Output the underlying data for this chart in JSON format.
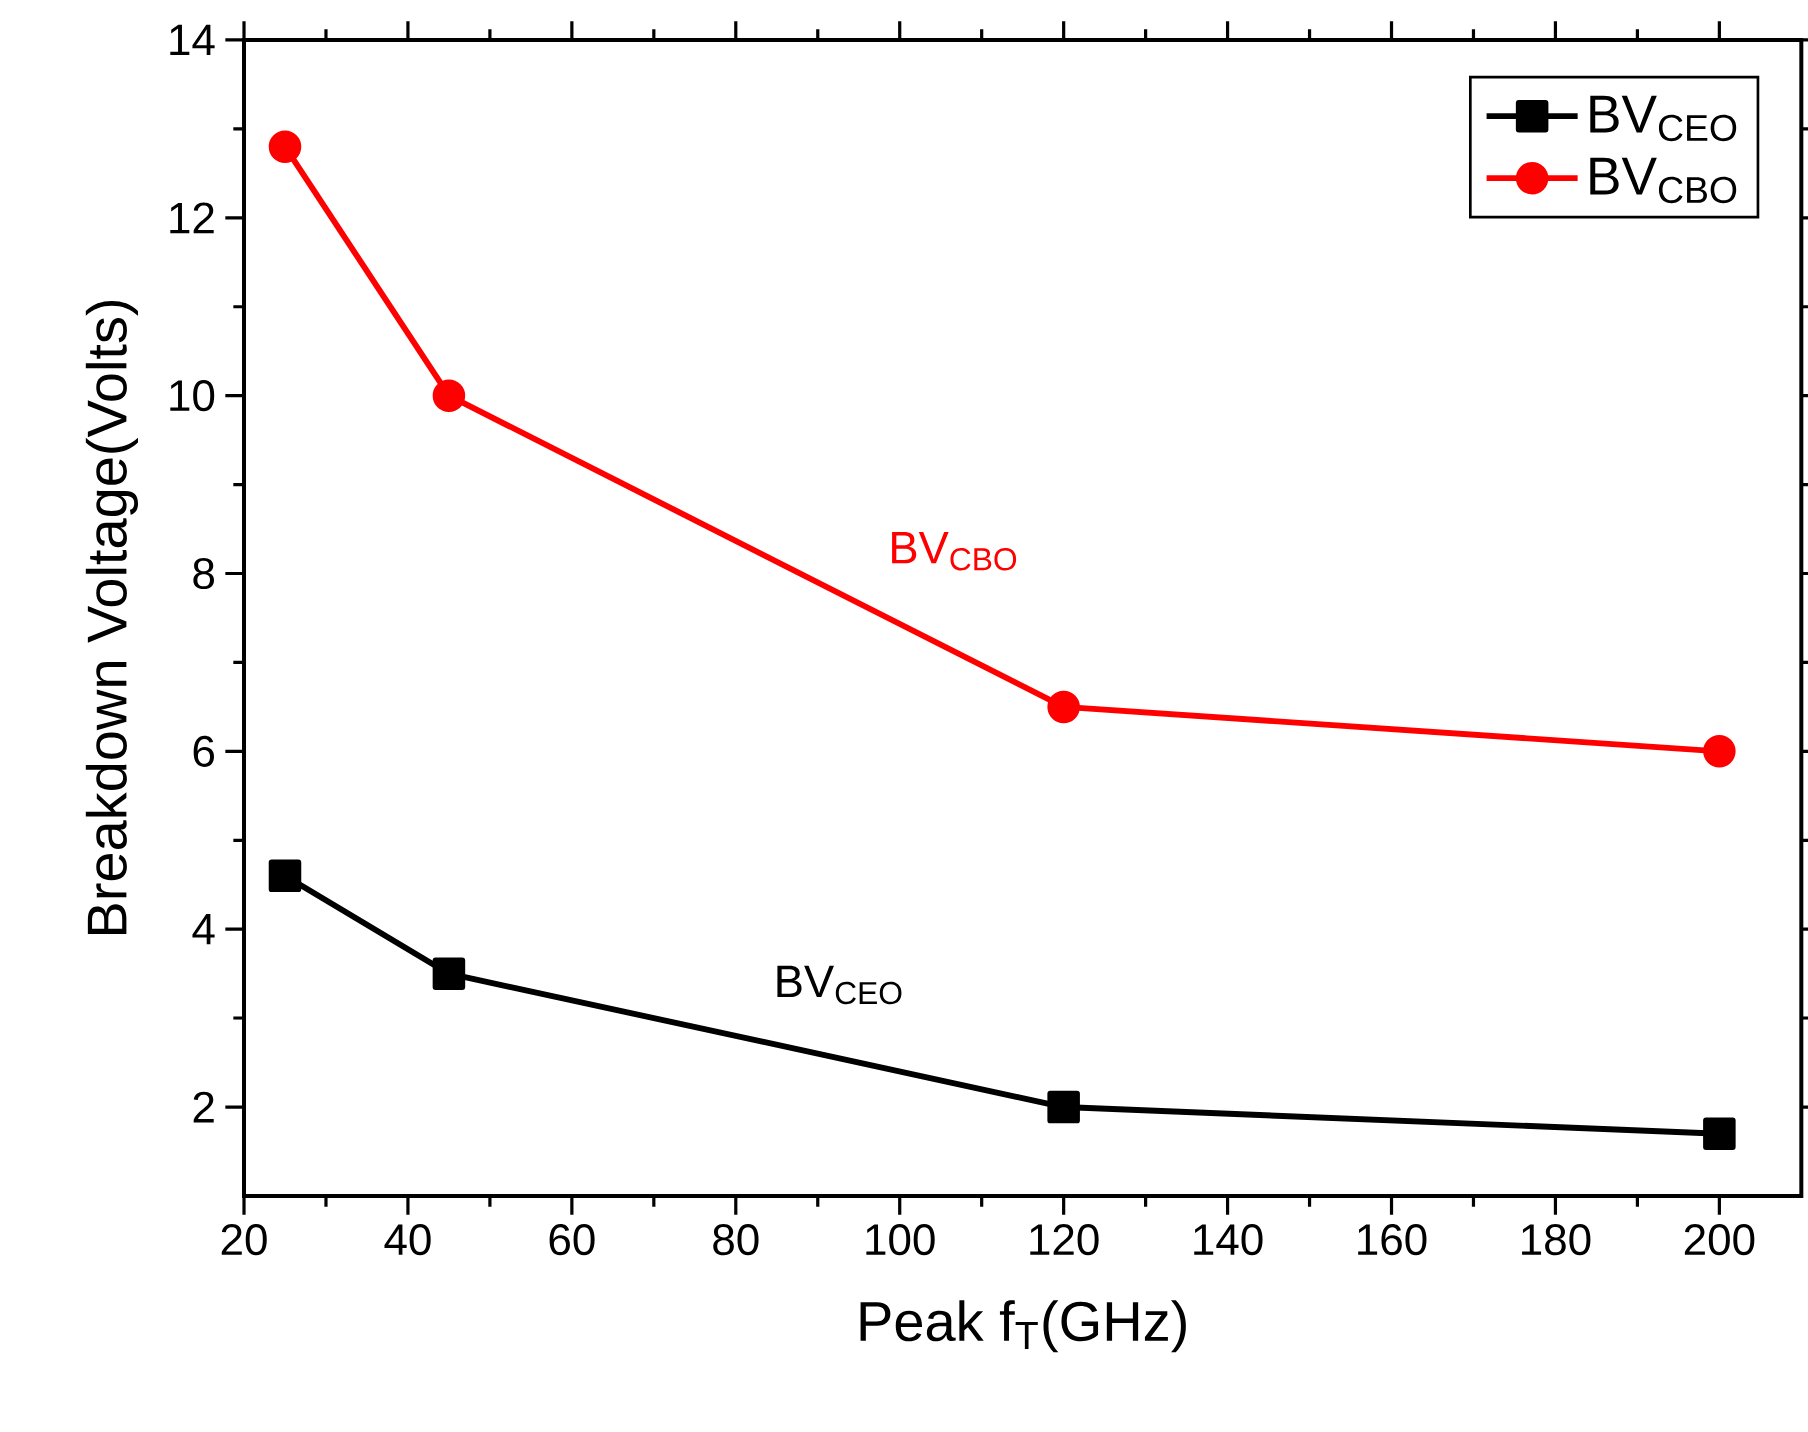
{
  "chart_data": {
    "type": "line",
    "xlabel": "Peak f$_{T}$(GHz)",
    "ylabel": "Breakdown Voltage(Volts)",
    "x": [
      25,
      45,
      120,
      200
    ],
    "series": [
      {
        "name": "BV$_{CEO}$",
        "color": "#000000",
        "marker": "square",
        "values": [
          4.6,
          3.5,
          2.0,
          1.7
        ]
      },
      {
        "name": "BV$_{CBO}$",
        "color": "#ff0000",
        "marker": "circle",
        "values": [
          12.8,
          10.0,
          6.5,
          6.0
        ]
      }
    ],
    "annotations": [
      "BV$_{CEO}$",
      "BV$_{CBO}$"
    ],
    "xlim": [
      20,
      210
    ],
    "ylim": [
      1,
      14
    ],
    "xticks": [
      20,
      40,
      60,
      80,
      100,
      120,
      140,
      160,
      180,
      200
    ],
    "yticks": [
      2,
      4,
      6,
      8,
      10,
      12,
      14
    ],
    "legend": "top right",
    "grid": false,
    "line_style": "solid"
  }
}
